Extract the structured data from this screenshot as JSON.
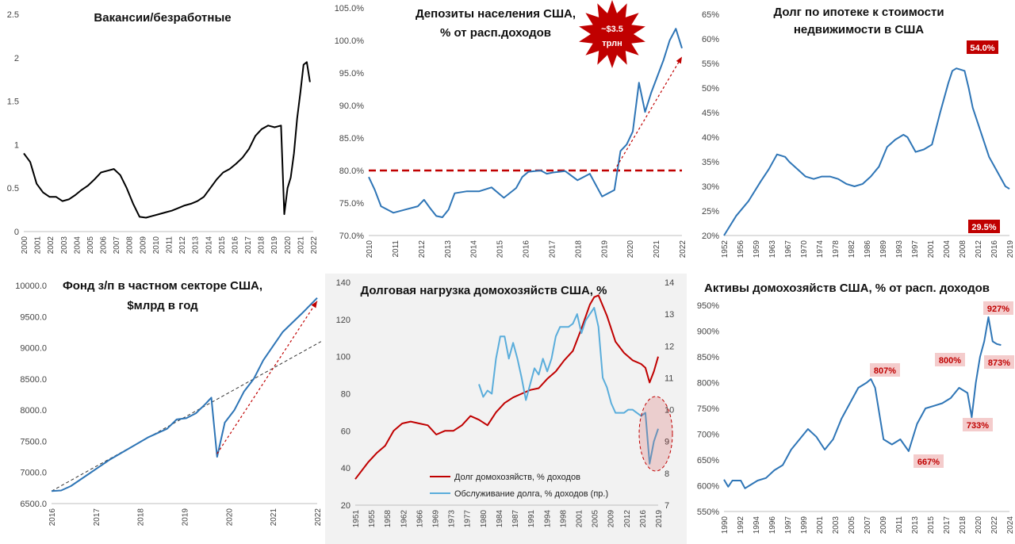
{
  "chart_data": [
    {
      "id": "vacancies",
      "type": "line",
      "title": [
        "Вакансии/безработные"
      ],
      "x": [
        2000,
        2000.5,
        2001,
        2001.5,
        2002,
        2002.5,
        2003,
        2003.5,
        2004,
        2004.5,
        2005,
        2005.5,
        2006,
        2006.5,
        2007,
        2007.5,
        2008,
        2008.5,
        2009,
        2009.5,
        2010,
        2010.5,
        2011,
        2011.5,
        2012,
        2012.5,
        2013,
        2013.5,
        2014,
        2014.5,
        2015,
        2015.5,
        2016,
        2016.5,
        2017,
        2017.5,
        2018,
        2018.5,
        2019,
        2019.5,
        2020,
        2020.25,
        2020.5,
        2020.75,
        2021,
        2021.25,
        2021.5,
        2021.75,
        2022,
        2022.25
      ],
      "series": [
        {
          "name": "Вакансии/безработные",
          "color": "#000000",
          "values": [
            0.9,
            0.8,
            0.55,
            0.45,
            0.4,
            0.4,
            0.35,
            0.37,
            0.42,
            0.48,
            0.53,
            0.6,
            0.68,
            0.7,
            0.72,
            0.65,
            0.5,
            0.32,
            0.17,
            0.16,
            0.18,
            0.2,
            0.22,
            0.24,
            0.27,
            0.3,
            0.32,
            0.35,
            0.4,
            0.5,
            0.6,
            0.68,
            0.72,
            0.78,
            0.85,
            0.95,
            1.1,
            1.18,
            1.22,
            1.2,
            1.22,
            0.2,
            0.5,
            0.62,
            0.9,
            1.3,
            1.6,
            1.92,
            1.95,
            1.72
          ]
        }
      ],
      "xticks": [
        "2000",
        "2001",
        "2002",
        "2003",
        "2004",
        "2005",
        "2006",
        "2007",
        "2008",
        "2009",
        "2010",
        "2011",
        "2012",
        "2013",
        "2014",
        "2015",
        "2016",
        "2017",
        "2018",
        "2019",
        "2020",
        "2021",
        "2022"
      ],
      "yticks": [
        "0",
        "0.5",
        "1",
        "1.5",
        "2",
        "2.5"
      ],
      "ylim": [
        0,
        2.5
      ]
    },
    {
      "id": "deposits",
      "type": "line",
      "title": [
        "Депозиты населения США,",
        "% от расп.доходов"
      ],
      "x": [
        2010,
        2010.25,
        2010.5,
        2011,
        2011.5,
        2012,
        2012.25,
        2012.5,
        2012.75,
        2013,
        2013.25,
        2013.5,
        2014,
        2014.5,
        2015,
        2015.5,
        2016,
        2016.25,
        2016.5,
        2017,
        2017.25,
        2017.5,
        2018,
        2018.5,
        2019,
        2019.5,
        2020,
        2020.25,
        2020.5,
        2020.75,
        2021,
        2021.25,
        2021.5,
        2022,
        2022.25,
        2022.5,
        2022.75
      ],
      "series": [
        {
          "name": "Депозиты",
          "color": "#2e75b6",
          "values": [
            79,
            77,
            74.5,
            73.5,
            74,
            74.5,
            75.5,
            74.2,
            73,
            72.8,
            74,
            76.5,
            76.8,
            76.8,
            77.4,
            75.8,
            77.3,
            79,
            79.8,
            80,
            79.5,
            79.7,
            79.9,
            78.5,
            79.5,
            76,
            77,
            83,
            84,
            86,
            93.5,
            89,
            92,
            97,
            100,
            101.8,
            98.8
          ]
        }
      ],
      "reference_line": {
        "value": 80,
        "color": "#c00000",
        "style": "dashed"
      },
      "trend_arrow": {
        "from": [
          2020,
          80
        ],
        "to": [
          2022.75,
          97.5
        ],
        "color": "#c00000"
      },
      "callout": {
        "text": [
          "~$3.5",
          "трлн"
        ],
        "color": "#c00000"
      },
      "xticks": [
        "2010",
        "2011",
        "2012",
        "2013",
        "2014",
        "2015",
        "2016",
        "2017",
        "2018",
        "2019",
        "2020",
        "2021",
        "2022"
      ],
      "yticks": [
        "70.0%",
        "75.0%",
        "80.0%",
        "85.0%",
        "90.0%",
        "95.0%",
        "100.0%",
        "105.0%"
      ],
      "ylim": [
        70,
        105
      ]
    },
    {
      "id": "mortgage",
      "type": "line",
      "title": [
        "Долг по ипотеке к стоимости",
        "недвижимости в США"
      ],
      "x": [
        1952,
        1955,
        1958,
        1961,
        1963,
        1965,
        1967,
        1968,
        1970,
        1972,
        1974,
        1976,
        1978,
        1980,
        1982,
        1984,
        1986,
        1988,
        1990,
        1992,
        1994,
        1996,
        1997,
        1999,
        2001,
        2003,
        2005,
        2007,
        2008,
        2009,
        2011,
        2012,
        2013,
        2015,
        2017,
        2019,
        2021,
        2022
      ],
      "series": [
        {
          "name": "Ипотека/стоимость",
          "color": "#2e75b6",
          "values": [
            20,
            24,
            27,
            31,
            33.5,
            36.5,
            36,
            35,
            33.5,
            32,
            31.5,
            32,
            32,
            31.5,
            30.5,
            30,
            30.5,
            32,
            34,
            38,
            39.5,
            40.5,
            40,
            37,
            37.5,
            38.5,
            45,
            51,
            53.5,
            54,
            53.5,
            50,
            46,
            41,
            36,
            33,
            30,
            29.5
          ]
        }
      ],
      "annotations": [
        {
          "text": "54.0%",
          "x": 2012,
          "y": 54
        },
        {
          "text": "29.5%",
          "x": 2022,
          "y": 29.5
        }
      ],
      "xticks": [
        "1952",
        "1956",
        "1959",
        "1963",
        "1967",
        "1970",
        "1974",
        "1978",
        "1982",
        "1986",
        "1989",
        "1993",
        "1997",
        "2001",
        "2004",
        "2008",
        "2012",
        "2016",
        "2019"
      ],
      "yticks": [
        "20%",
        "25%",
        "30%",
        "35%",
        "40%",
        "45%",
        "50%",
        "55%",
        "60%",
        "65%"
      ],
      "ylim": [
        20,
        65
      ]
    },
    {
      "id": "payroll",
      "type": "line",
      "title": [
        "Фонд з/п в частном секторе США,",
        "$млрд в год"
      ],
      "x": [
        2016,
        2016.25,
        2016.5,
        2017,
        2017.5,
        2018,
        2018.5,
        2019,
        2019.25,
        2019.5,
        2019.75,
        2020,
        2020.15,
        2020.3,
        2020.5,
        2020.75,
        2021,
        2021.25,
        2021.5,
        2022,
        2022.25,
        2022.5,
        2022.9
      ],
      "series": [
        {
          "name": "Фонд з/п",
          "color": "#2e75b6",
          "values": [
            6700,
            6710,
            6780,
            6990,
            7200,
            7380,
            7560,
            7700,
            7850,
            7870,
            7950,
            8100,
            8200,
            7250,
            7800,
            8000,
            8300,
            8500,
            8800,
            9250,
            9400,
            9550,
            9800
          ]
        }
      ],
      "trend_line": {
        "from": [
          2016,
          6700
        ],
        "to": [
          2023,
          9100
        ],
        "color": "#333333",
        "style": "dashed"
      },
      "trend_arrows": [
        {
          "from": [
            2020.3,
            7300
          ],
          "to": [
            2022.9,
            9750
          ],
          "color": "#c00000"
        }
      ],
      "xticks": [
        "2016",
        "2017",
        "2018",
        "2019",
        "2020",
        "2021",
        "2022"
      ],
      "yticks": [
        "6500.0",
        "7000.0",
        "7500.0",
        "8000.0",
        "8500.0",
        "9000.0",
        "9500.0",
        "10000.0"
      ],
      "ylim": [
        6500,
        10000
      ]
    },
    {
      "id": "debt_burden",
      "type": "line",
      "title": [
        "Долговая  нагрузка домохозяйств США, %"
      ],
      "x": [
        1951,
        1954,
        1956,
        1958,
        1960,
        1962,
        1964,
        1966,
        1968,
        1970,
        1972,
        1974,
        1976,
        1978,
        1980,
        1982,
        1984,
        1986,
        1988,
        1990,
        1992,
        1994,
        1996,
        1998,
        2000,
        2002,
        2004,
        2006,
        2007,
        2008,
        2010,
        2012,
        2014,
        2016,
        2018,
        2019,
        2020,
        2021,
        2022
      ],
      "series": [
        {
          "name": "Долг домохозяйств, % доходов",
          "color": "#c00000",
          "axis": "left",
          "values": [
            34,
            43,
            48,
            52,
            60,
            64,
            65,
            64,
            63,
            58,
            60,
            60,
            63,
            68,
            66,
            63,
            70,
            75,
            78,
            80,
            82,
            83,
            88,
            92,
            98,
            103,
            115,
            128,
            132,
            133,
            122,
            108,
            102,
            98,
            96,
            94,
            86,
            92,
            100
          ]
        },
        {
          "name": "Обслуживание долга, % доходов (пр.)",
          "color": "#5aaddb",
          "axis": "right",
          "x": [
            1980,
            1981,
            1982,
            1983,
            1984,
            1985,
            1986,
            1987,
            1988,
            1989,
            1990,
            1991,
            1992,
            1993,
            1994,
            1995,
            1996,
            1997,
            1998,
            1999,
            2000,
            2001,
            2002,
            2003,
            2004,
            2005,
            2006,
            2007,
            2008,
            2009,
            2010,
            2011,
            2012,
            2013,
            2014,
            2015,
            2016,
            2017,
            2018,
            2019,
            2020,
            2021,
            2022
          ],
          "values": [
            10.8,
            10.4,
            10.6,
            10.5,
            11.6,
            12.3,
            12.3,
            11.6,
            12.1,
            11.6,
            11.0,
            10.3,
            10.8,
            11.3,
            11.1,
            11.6,
            11.2,
            11.6,
            12.3,
            12.6,
            12.6,
            12.6,
            12.7,
            13.0,
            12.4,
            12.8,
            13.0,
            13.2,
            12.6,
            11.0,
            10.7,
            10.2,
            9.9,
            9.9,
            9.9,
            10.0,
            10.0,
            9.9,
            9.8,
            9.9,
            8.3,
            9.0,
            9.4
          ]
        }
      ],
      "highlight": "ellipse around 2019–2022",
      "xticks": [
        "1951",
        "1955",
        "1958",
        "1962",
        "1966",
        "1969",
        "1973",
        "1977",
        "1980",
        "1984",
        "1987",
        "1991",
        "1994",
        "1998",
        "2001",
        "2005",
        "2009",
        "2012",
        "2016",
        "2019"
      ],
      "yticks_left": [
        "20",
        "40",
        "60",
        "80",
        "100",
        "120",
        "140"
      ],
      "yticks_right": [
        "7",
        "8",
        "9",
        "10",
        "11",
        "12",
        "13",
        "14"
      ],
      "ylim_left": [
        20,
        140
      ],
      "ylim_right": [
        7,
        14
      ],
      "legend": [
        "Долг домохозяйств, % доходов",
        "Обслуживание долга, % доходов (пр.)"
      ]
    },
    {
      "id": "assets",
      "type": "line",
      "title": [
        "Активы домохозяйств  США, % от расп. доходов"
      ],
      "x": [
        1990,
        1990.5,
        1991,
        1992,
        1992.5,
        1993,
        1994,
        1995,
        1996,
        1997,
        1998,
        1999,
        2000,
        2001,
        2002,
        2003,
        2004,
        2005,
        2006,
        2007,
        2007.5,
        2008,
        2009,
        2010,
        2011,
        2012,
        2013,
        2014,
        2015,
        2016,
        2017,
        2018,
        2019,
        2019.5,
        2020,
        2020.5,
        2021,
        2021.5,
        2022,
        2022.5,
        2023
      ],
      "series": [
        {
          "name": "Активы",
          "color": "#2e75b6",
          "values": [
            612,
            598,
            610,
            610,
            595,
            600,
            610,
            615,
            630,
            640,
            670,
            690,
            710,
            695,
            670,
            690,
            730,
            760,
            790,
            800,
            807,
            790,
            690,
            680,
            690,
            667,
            720,
            750,
            755,
            760,
            770,
            790,
            780,
            733,
            800,
            850,
            880,
            927,
            880,
            875,
            873
          ]
        }
      ],
      "annotations": [
        {
          "text": "807%"
        },
        {
          "text": "667%"
        },
        {
          "text": "800%"
        },
        {
          "text": "733%"
        },
        {
          "text": "927%"
        },
        {
          "text": "873%"
        }
      ],
      "xticks": [
        "1990",
        "1992",
        "1994",
        "1996",
        "1997",
        "1999",
        "2001",
        "2003",
        "2005",
        "2007",
        "2009",
        "2011",
        "2013",
        "2015",
        "2017",
        "2018",
        "2020",
        "2022",
        "2024"
      ],
      "yticks": [
        "550%",
        "600%",
        "650%",
        "700%",
        "750%",
        "800%",
        "850%",
        "900%",
        "950%"
      ],
      "ylim": [
        550,
        950
      ]
    }
  ]
}
